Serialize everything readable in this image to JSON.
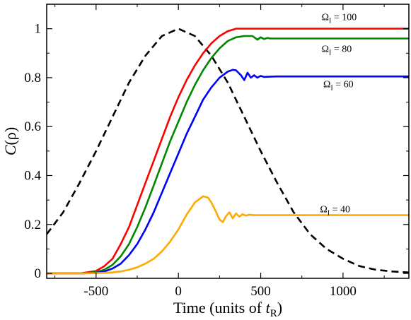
{
  "chart_data": {
    "type": "line",
    "xlabel": {
      "prefix": "Time (units of ",
      "var": "t",
      "sub": "R",
      "suffix": ")"
    },
    "ylabel": {
      "italic": "C",
      "rest": "(ρ)"
    },
    "xlim": [
      -800,
      1400
    ],
    "ylim": [
      -0.02,
      1.1
    ],
    "xticks": [
      -500,
      0,
      500,
      1000
    ],
    "xtick_labels": [
      "-500",
      "0",
      "500",
      "1000"
    ],
    "yticks": [
      0,
      0.2,
      0.4,
      0.6,
      0.8,
      1
    ],
    "ytick_labels": [
      "0",
      "0.2",
      "0.4",
      "0.6",
      "0.8",
      "1"
    ],
    "grid": false,
    "legend": "none",
    "colors": {
      "dashed": "#000000",
      "omega100": "#ff0000",
      "omega80": "#008800",
      "omega60": "#0000ff",
      "omega40": "#ffaa00"
    },
    "series": [
      {
        "key": "pulse",
        "style": "dashed",
        "color": "#000000",
        "x": [
          -800,
          -700,
          -600,
          -500,
          -400,
          -300,
          -200,
          -100,
          0,
          100,
          200,
          300,
          400,
          500,
          600,
          700,
          800,
          900,
          1000,
          1100,
          1200,
          1300,
          1400
        ],
        "y": [
          0.16,
          0.25,
          0.37,
          0.5,
          0.64,
          0.78,
          0.89,
          0.97,
          1.0,
          0.97,
          0.89,
          0.78,
          0.64,
          0.5,
          0.37,
          0.25,
          0.16,
          0.1,
          0.06,
          0.03,
          0.015,
          0.008,
          0.004
        ]
      },
      {
        "key": "omega100",
        "color": "#ff0000",
        "x": [
          -800,
          -600,
          -500,
          -450,
          -400,
          -350,
          -300,
          -250,
          -200,
          -150,
          -100,
          -50,
          0,
          50,
          100,
          150,
          200,
          250,
          300,
          350,
          400,
          450,
          500,
          600,
          800,
          1000,
          1200,
          1400
        ],
        "y": [
          0,
          0,
          0.01,
          0.03,
          0.06,
          0.12,
          0.19,
          0.28,
          0.37,
          0.46,
          0.55,
          0.64,
          0.72,
          0.79,
          0.85,
          0.9,
          0.94,
          0.97,
          0.99,
          1.0,
          1.0,
          1.0,
          1.0,
          1.0,
          1.0,
          1.0,
          1.0,
          1.0
        ]
      },
      {
        "key": "omega80",
        "color": "#008800",
        "x": [
          -800,
          -600,
          -500,
          -450,
          -400,
          -350,
          -300,
          -250,
          -200,
          -150,
          -100,
          -50,
          0,
          50,
          100,
          150,
          200,
          250,
          300,
          350,
          400,
          450,
          480,
          500,
          520,
          540,
          560,
          600,
          800,
          1000,
          1200,
          1400
        ],
        "y": [
          0,
          0,
          0.005,
          0.015,
          0.035,
          0.07,
          0.12,
          0.19,
          0.27,
          0.36,
          0.45,
          0.54,
          0.62,
          0.7,
          0.77,
          0.83,
          0.88,
          0.92,
          0.95,
          0.965,
          0.97,
          0.97,
          0.955,
          0.965,
          0.958,
          0.962,
          0.96,
          0.96,
          0.96,
          0.96,
          0.96,
          0.96
        ]
      },
      {
        "key": "omega60",
        "color": "#0000ff",
        "x": [
          -800,
          -600,
          -500,
          -450,
          -400,
          -350,
          -300,
          -250,
          -200,
          -150,
          -100,
          -50,
          0,
          50,
          100,
          150,
          200,
          250,
          300,
          330,
          350,
          380,
          400,
          420,
          440,
          460,
          480,
          500,
          520,
          600,
          800,
          1000,
          1200,
          1400
        ],
        "y": [
          0,
          0,
          0.002,
          0.008,
          0.02,
          0.04,
          0.075,
          0.12,
          0.18,
          0.25,
          0.33,
          0.41,
          0.49,
          0.57,
          0.64,
          0.71,
          0.76,
          0.8,
          0.825,
          0.832,
          0.83,
          0.81,
          0.79,
          0.82,
          0.8,
          0.81,
          0.8,
          0.807,
          0.803,
          0.805,
          0.805,
          0.805,
          0.805,
          0.805
        ]
      },
      {
        "key": "omega40",
        "color": "#ffaa00",
        "x": [
          -800,
          -600,
          -500,
          -400,
          -350,
          -300,
          -250,
          -200,
          -150,
          -100,
          -50,
          0,
          50,
          100,
          150,
          180,
          200,
          230,
          250,
          270,
          290,
          310,
          330,
          350,
          370,
          390,
          410,
          430,
          460,
          500,
          600,
          800,
          1000,
          1200,
          1400
        ],
        "y": [
          0,
          0,
          0.001,
          0.004,
          0.008,
          0.015,
          0.025,
          0.04,
          0.06,
          0.09,
          0.13,
          0.18,
          0.24,
          0.29,
          0.315,
          0.31,
          0.29,
          0.25,
          0.22,
          0.21,
          0.235,
          0.25,
          0.225,
          0.245,
          0.232,
          0.242,
          0.236,
          0.24,
          0.238,
          0.238,
          0.238,
          0.238,
          0.238,
          0.238,
          0.238
        ]
      }
    ],
    "annotations": [
      {
        "key": "omega100",
        "symbol": "Ω",
        "sub": "I",
        "text": " = 100",
        "at_x": 870,
        "at_y": 1.05
      },
      {
        "key": "omega80",
        "symbol": "Ω",
        "sub": "I",
        "text": " = 80",
        "at_x": 870,
        "at_y": 0.92
      },
      {
        "key": "omega60",
        "symbol": "Ω",
        "sub": "I",
        "text": " = 60",
        "at_x": 880,
        "at_y": 0.775
      },
      {
        "key": "omega40",
        "symbol": "Ω",
        "sub": "I",
        "text": " = 40",
        "at_x": 860,
        "at_y": 0.265
      }
    ]
  }
}
